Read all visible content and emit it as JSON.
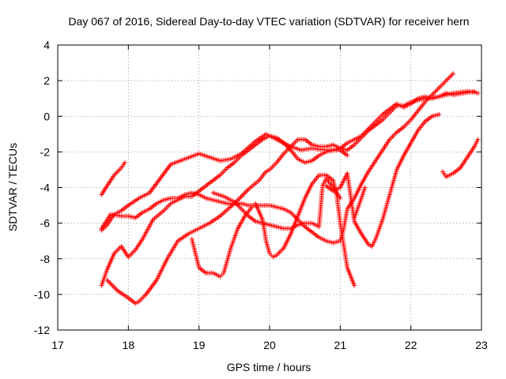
{
  "chart_data": {
    "type": "scatter",
    "title": "Day 067 of 2016, Sidereal Day-to-day VTEC variation (SDTVAR) for receiver hern",
    "xlabel": "GPS time / hours",
    "ylabel": "SDTVAR / TECUs",
    "xlim": [
      17,
      23
    ],
    "ylim": [
      -12,
      4
    ],
    "xticks": [
      "17",
      "18",
      "19",
      "20",
      "21",
      "22",
      "23"
    ],
    "yticks": [
      "4",
      "2",
      "0",
      "-2",
      "-4",
      "-6",
      "-8",
      "-10",
      "-12"
    ],
    "grid": true,
    "marker": "+",
    "color": "#ff0000",
    "series": [
      {
        "x": [
          17.62,
          17.7,
          17.8,
          17.9,
          17.95
        ],
        "y": [
          -4.4,
          -3.9,
          -3.3,
          -2.9,
          -2.6
        ]
      },
      {
        "x": [
          17.62,
          17.7,
          17.8,
          17.9,
          18.0,
          18.15,
          18.3,
          18.45,
          18.6,
          18.8,
          19.0,
          19.15,
          19.3,
          19.45,
          19.6,
          19.8,
          19.95,
          20.1,
          20.3,
          20.45,
          20.6,
          20.8,
          21.0,
          21.1
        ],
        "y": [
          -6.4,
          -6.1,
          -5.5,
          -5.3,
          -5.0,
          -4.6,
          -4.3,
          -3.5,
          -2.7,
          -2.4,
          -2.1,
          -2.3,
          -2.5,
          -2.4,
          -2.1,
          -1.4,
          -1.0,
          -1.3,
          -1.7,
          -1.9,
          -1.8,
          -1.9,
          -1.9,
          -2.2
        ]
      },
      {
        "x": [
          17.62,
          17.7,
          17.8,
          17.9,
          18.0,
          18.1,
          18.2,
          18.35,
          18.5,
          18.6,
          18.7,
          18.8,
          18.9,
          19.0,
          19.1,
          19.2,
          19.3,
          19.4,
          19.5,
          19.6,
          19.7,
          19.8,
          19.9,
          20.0,
          20.1,
          20.2,
          20.3,
          20.4,
          20.5,
          20.6,
          20.7,
          20.8,
          20.9,
          21.0,
          21.1,
          21.2,
          21.3,
          21.4,
          21.5,
          21.6,
          21.7,
          21.8,
          21.9,
          22.0,
          22.2,
          22.4,
          22.6,
          22.8,
          22.95
        ],
        "y": [
          -9.5,
          -8.6,
          -7.7,
          -7.3,
          -7.9,
          -7.5,
          -6.9,
          -5.8,
          -5.3,
          -4.9,
          -4.7,
          -4.5,
          -4.5,
          -4.2,
          -3.9,
          -3.6,
          -3.3,
          -2.9,
          -2.6,
          -2.2,
          -1.9,
          -1.6,
          -1.3,
          -1.1,
          -1.2,
          -1.5,
          -1.9,
          -2.4,
          -2.6,
          -2.5,
          -2.2,
          -2.0,
          -1.9,
          -1.8,
          -1.9,
          -1.6,
          -1.2,
          -0.8,
          -0.5,
          -0.2,
          0.2,
          0.6,
          0.6,
          0.8,
          1.0,
          1.1,
          1.3,
          1.4,
          1.3
        ]
      },
      {
        "x": [
          17.62,
          17.75,
          17.9,
          18.0,
          18.1,
          18.2,
          18.3,
          18.4,
          18.5,
          18.6,
          18.7,
          18.8,
          18.9,
          19.0,
          19.1,
          19.2,
          19.3,
          19.4,
          19.5,
          19.6,
          19.7,
          19.8,
          19.9,
          20.0,
          20.1,
          20.2,
          20.3,
          20.4,
          20.5,
          20.6,
          20.7,
          20.8,
          20.9,
          21.0,
          21.05,
          21.1,
          21.2,
          21.3,
          21.4,
          21.5,
          21.6,
          21.7,
          21.8,
          21.9,
          22.0,
          22.1,
          22.2,
          22.3,
          22.4,
          22.5,
          22.6
        ],
        "y": [
          -6.3,
          -5.5,
          -5.6,
          -5.6,
          -5.7,
          -5.4,
          -5.2,
          -4.9,
          -4.7,
          -4.6,
          -4.6,
          -4.4,
          -4.3,
          -4.4,
          -4.6,
          -4.7,
          -4.8,
          -4.9,
          -4.9,
          -4.9,
          -5.0,
          -5.0,
          -5.0,
          -5.0,
          -5.1,
          -5.2,
          -5.4,
          -5.8,
          -6.2,
          -6.5,
          -6.8,
          -7.0,
          -7.1,
          -7.0,
          -6.3,
          -5.2,
          -4.6,
          -3.8,
          -3.1,
          -2.5,
          -1.9,
          -1.3,
          -0.9,
          -0.6,
          -0.2,
          0.3,
          0.8,
          1.2,
          1.6,
          2.0,
          2.4
        ]
      },
      {
        "x": [
          17.7,
          17.85,
          18.0,
          18.1,
          18.15,
          18.25,
          18.4,
          18.55,
          18.7,
          18.85,
          19.0,
          19.15,
          19.3,
          19.5,
          19.7,
          19.85,
          19.95,
          20.0,
          20.1,
          20.2,
          20.3,
          20.4,
          20.5,
          20.6,
          20.7,
          20.8,
          20.9,
          21.0,
          21.1,
          21.2,
          21.3,
          21.4,
          21.5,
          21.6,
          21.7,
          21.8,
          21.9,
          22.0,
          22.1,
          22.2,
          22.3,
          22.4,
          22.5,
          22.6,
          22.75,
          22.9
        ],
        "y": [
          -9.2,
          -9.8,
          -10.2,
          -10.5,
          -10.4,
          -10.0,
          -9.2,
          -8.0,
          -7.0,
          -6.6,
          -6.3,
          -6.0,
          -5.6,
          -4.9,
          -4.1,
          -3.6,
          -3.1,
          -3.0,
          -2.6,
          -2.1,
          -1.7,
          -1.3,
          -1.3,
          -1.6,
          -1.7,
          -1.7,
          -1.6,
          -1.8,
          -1.5,
          -1.3,
          -1.1,
          -0.7,
          -0.3,
          0.1,
          0.4,
          0.7,
          0.5,
          0.7,
          1.0,
          1.1,
          1.0,
          1.1,
          1.3,
          1.2,
          1.3,
          1.4
        ]
      },
      {
        "x": [
          18.9,
          19.0,
          19.1,
          19.2,
          19.3,
          19.35,
          19.45,
          19.55,
          19.65,
          19.75,
          19.8,
          19.9,
          19.95,
          20.0,
          20.05,
          20.1,
          20.2,
          20.3,
          20.4,
          20.5,
          20.6,
          20.7,
          20.8,
          20.9,
          20.95,
          21.0,
          21.1,
          21.2
        ],
        "y": [
          -6.9,
          -8.5,
          -8.8,
          -8.8,
          -9.0,
          -8.8,
          -7.4,
          -6.3,
          -5.6,
          -5.1,
          -4.9,
          -5.8,
          -7.0,
          -7.7,
          -7.9,
          -7.8,
          -7.4,
          -6.6,
          -5.6,
          -4.6,
          -3.8,
          -3.3,
          -3.3,
          -3.6,
          -4.4,
          -6.0,
          -8.5,
          -9.5
        ]
      },
      {
        "x": [
          19.2,
          19.35,
          19.5,
          19.6,
          19.7,
          19.8,
          19.9,
          20.0,
          20.1,
          20.2,
          20.3,
          20.4,
          20.5,
          20.6,
          20.7,
          20.75,
          20.8,
          20.9,
          21.0
        ],
        "y": [
          -4.3,
          -4.5,
          -4.8,
          -5.2,
          -5.6,
          -5.9,
          -6.0,
          -6.1,
          -6.2,
          -6.3,
          -6.3,
          -6.1,
          -6.0,
          -6.0,
          -6.2,
          -3.9,
          -3.5,
          -4.0,
          -4.6
        ]
      },
      {
        "x": [
          20.8,
          20.9,
          21.0,
          21.1,
          21.2,
          21.3,
          21.4,
          21.45,
          21.5,
          21.6,
          21.7,
          21.8,
          21.9,
          22.0,
          22.1,
          22.2,
          22.3,
          22.4
        ],
        "y": [
          -3.9,
          -4.2,
          -4.0,
          -3.2,
          -5.9,
          -6.6,
          -7.2,
          -7.3,
          -6.9,
          -5.8,
          -4.4,
          -3.0,
          -2.2,
          -1.5,
          -0.8,
          -0.3,
          0.0,
          0.1
        ]
      },
      {
        "x": [
          21.2,
          21.3,
          21.35
        ],
        "y": [
          -5.7,
          -4.6,
          -4.0
        ]
      },
      {
        "x": [
          22.45,
          22.5,
          22.6,
          22.7,
          22.8,
          22.9,
          22.95
        ],
        "y": [
          -3.1,
          -3.4,
          -3.2,
          -2.9,
          -2.3,
          -1.7,
          -1.3
        ]
      }
    ]
  }
}
